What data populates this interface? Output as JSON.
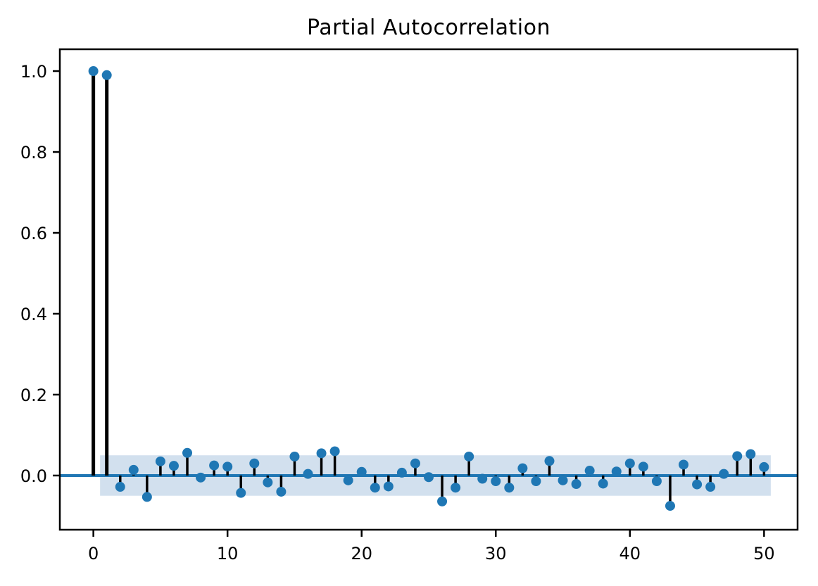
{
  "figure": {
    "title": "Partial Autocorrelation"
  },
  "chart_data": {
    "type": "stem",
    "title": "Partial Autocorrelation",
    "xlabel": "",
    "ylabel": "",
    "x": [
      0,
      1,
      2,
      3,
      4,
      5,
      6,
      7,
      8,
      9,
      10,
      11,
      12,
      13,
      14,
      15,
      16,
      17,
      18,
      19,
      20,
      21,
      22,
      23,
      24,
      25,
      26,
      27,
      28,
      29,
      30,
      31,
      32,
      33,
      34,
      35,
      36,
      37,
      38,
      39,
      40,
      41,
      42,
      43,
      44,
      45,
      46,
      47,
      48,
      49,
      50
    ],
    "values": [
      1.0,
      0.99,
      -0.028,
      0.014,
      -0.053,
      0.035,
      0.024,
      0.056,
      -0.005,
      0.025,
      0.022,
      -0.043,
      0.03,
      -0.017,
      -0.04,
      0.047,
      0.004,
      0.055,
      0.06,
      -0.012,
      0.009,
      -0.03,
      -0.027,
      0.007,
      0.03,
      -0.004,
      -0.064,
      -0.03,
      0.047,
      -0.008,
      -0.014,
      -0.03,
      0.018,
      -0.014,
      0.036,
      -0.012,
      -0.021,
      0.012,
      -0.02,
      0.01,
      0.03,
      0.022,
      -0.014,
      -0.075,
      0.027,
      -0.022,
      -0.028,
      0.004,
      0.048,
      0.053,
      0.021
    ],
    "xlim": [
      -2.5,
      52.5
    ],
    "ylim": [
      -0.134,
      1.054
    ],
    "xticks": {
      "values": [
        0,
        10,
        20,
        30,
        40,
        50
      ],
      "labels": [
        "0",
        "10",
        "20",
        "30",
        "40",
        "50"
      ]
    },
    "yticks": {
      "values": [
        0.0,
        0.2,
        0.4,
        0.6,
        0.8,
        1.0
      ],
      "labels": [
        "0.0",
        "0.2",
        "0.4",
        "0.6",
        "0.8",
        "1.0"
      ]
    },
    "confidence_band": {
      "x_start": 0.5,
      "x_end": 50.5,
      "y_low": -0.05,
      "y_high": 0.05
    },
    "zero_line_y": 0,
    "grid": false,
    "legend": null,
    "colors": {
      "marker": "#1f77b4",
      "stem": "#000000",
      "zero_line": "#2077b4",
      "confidence_band": "#d2e0ee",
      "spine": "#000000",
      "text": "#000000",
      "background": "#ffffff"
    }
  }
}
